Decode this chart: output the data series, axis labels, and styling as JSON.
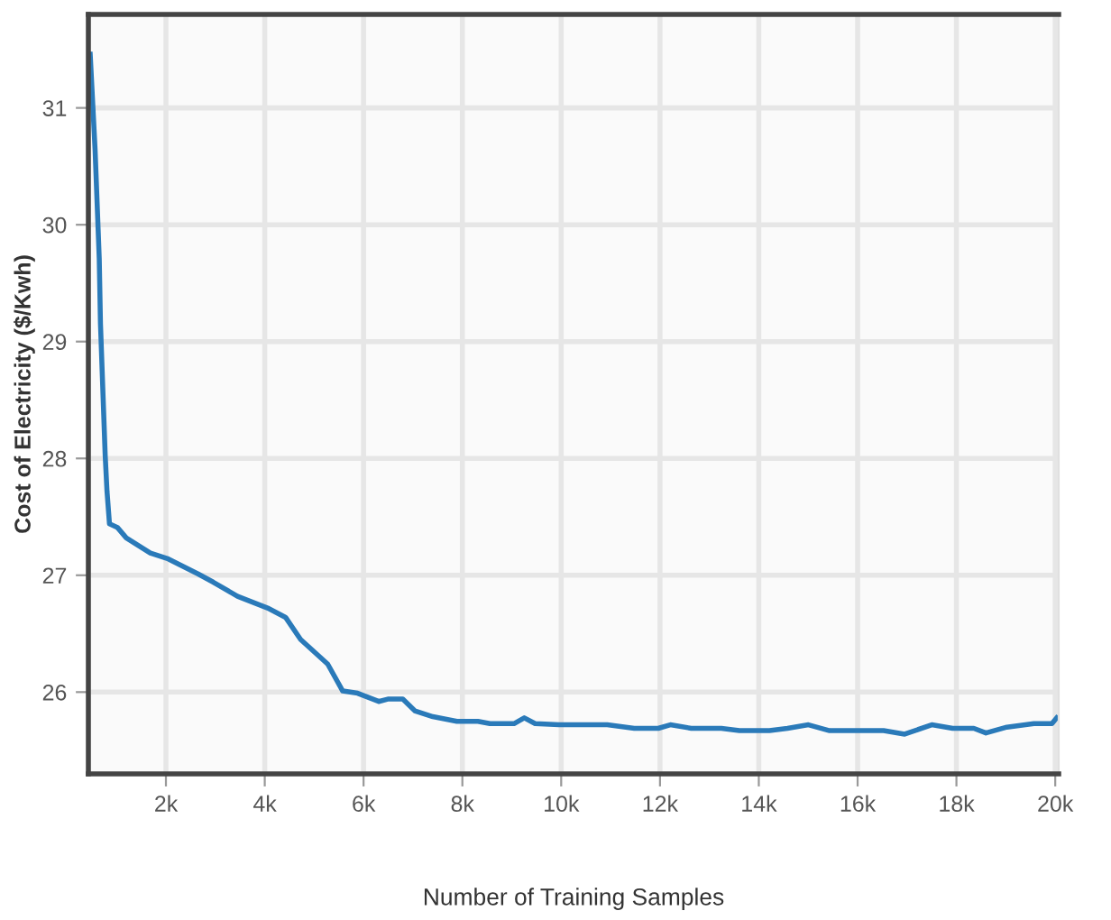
{
  "chart_data": {
    "type": "line",
    "xlabel": "Number of Training Samples",
    "ylabel": "Cost of Electricity ($/Kwh)",
    "series": [
      {
        "color": "#2a7ab9",
        "x": [
          467,
          566,
          650,
          675,
          770,
          807,
          857,
          1015,
          1197,
          1683,
          2048,
          2657,
          2961,
          3449,
          4056,
          4421,
          4726,
          5274,
          5577,
          5880,
          6307,
          6490,
          6794,
          7037,
          7402,
          7889,
          8315,
          8558,
          9045,
          9253,
          9472,
          9957,
          10932,
          11479,
          11965,
          12209,
          12633,
          13242,
          13607,
          14216,
          14581,
          15005,
          15432,
          16527,
          16953,
          17501,
          17924,
          18352,
          18597,
          19021,
          19568,
          19933,
          20030
        ],
        "values": [
          31.46,
          30.64,
          29.71,
          29.15,
          28.03,
          27.72,
          27.44,
          27.41,
          27.32,
          27.19,
          27.14,
          27.01,
          26.94,
          26.82,
          26.72,
          26.64,
          26.45,
          26.24,
          26.01,
          25.99,
          25.92,
          25.94,
          25.94,
          25.84,
          25.79,
          25.75,
          25.75,
          25.73,
          25.73,
          25.78,
          25.73,
          25.72,
          25.72,
          25.69,
          25.69,
          25.72,
          25.69,
          25.69,
          25.67,
          25.67,
          25.69,
          25.72,
          25.67,
          25.67,
          25.64,
          25.72,
          25.69,
          25.69,
          25.65,
          25.7,
          25.73,
          25.73,
          25.78
        ]
      }
    ],
    "xlim": [
      430,
      20070
    ],
    "ylim": [
      25.3,
      31.8
    ],
    "xticks": [
      {
        "value": 2000,
        "label": "2k"
      },
      {
        "value": 4000,
        "label": "4k"
      },
      {
        "value": 6000,
        "label": "6k"
      },
      {
        "value": 8000,
        "label": "8k"
      },
      {
        "value": 10000,
        "label": "10k"
      },
      {
        "value": 12000,
        "label": "12k"
      },
      {
        "value": 14000,
        "label": "14k"
      },
      {
        "value": 16000,
        "label": "16k"
      },
      {
        "value": 18000,
        "label": "18k"
      },
      {
        "value": 20000,
        "label": "20k"
      }
    ],
    "yticks": [
      26,
      27,
      28,
      29,
      30,
      31
    ],
    "grid": true,
    "legend": false,
    "marker": "none",
    "line_style": "solid"
  }
}
